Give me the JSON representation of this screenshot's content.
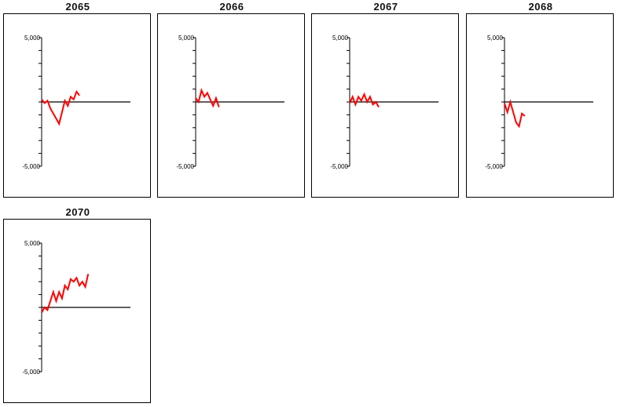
{
  "chart_data": [
    {
      "type": "line",
      "title": "2065",
      "ylim": [
        -5000,
        5000
      ],
      "y_tick_labels": [
        "5,000",
        "-5,000"
      ],
      "grid": false,
      "series": [
        {
          "color": "#ff0000",
          "values": [
            200,
            -100,
            100,
            -500,
            -900,
            -1300,
            -1700,
            -800,
            100,
            -300,
            400,
            200,
            800,
            500
          ]
        }
      ]
    },
    {
      "type": "line",
      "title": "2066",
      "ylim": [
        -5000,
        5000
      ],
      "y_tick_labels": [
        "5,000",
        "-5,000"
      ],
      "grid": false,
      "series": [
        {
          "color": "#ff0000",
          "values": [
            300,
            0,
            900,
            400,
            700,
            200,
            -300,
            300,
            -400
          ]
        }
      ]
    },
    {
      "type": "line",
      "title": "2067",
      "ylim": [
        -5000,
        5000
      ],
      "y_tick_labels": [
        "5,000",
        "-5,000"
      ],
      "grid": false,
      "series": [
        {
          "color": "#ff0000",
          "values": [
            -100,
            400,
            -200,
            400,
            100,
            600,
            0,
            400,
            -200,
            0,
            -400
          ]
        }
      ]
    },
    {
      "type": "line",
      "title": "2068",
      "ylim": [
        -5000,
        5000
      ],
      "y_tick_labels": [
        "5,000",
        "-5,000"
      ],
      "grid": false,
      "series": [
        {
          "color": "#ff0000",
          "values": [
            -100,
            -800,
            0,
            -800,
            -1600,
            -1900,
            -900,
            -1100
          ]
        }
      ]
    },
    {
      "type": "line",
      "title": "2070",
      "ylim": [
        -5000,
        5000
      ],
      "y_tick_labels": [
        "5,000",
        "-5,000"
      ],
      "grid": false,
      "series": [
        {
          "color": "#ff0000",
          "values": [
            -400,
            0,
            -200,
            500,
            1200,
            500,
            1200,
            700,
            1700,
            1400,
            2200,
            2000,
            2300,
            1700,
            2000,
            1600,
            2600
          ]
        }
      ]
    }
  ]
}
